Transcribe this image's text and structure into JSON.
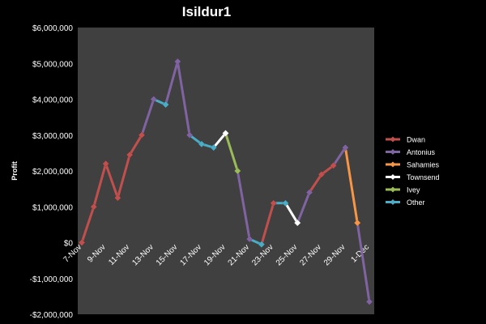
{
  "chart_data": {
    "type": "line",
    "title": "Isildur1",
    "xlabel": "",
    "ylabel": "Profit",
    "ylim": [
      -2000000,
      6000000
    ],
    "y_ticks": [
      -2000000,
      -1000000,
      0,
      1000000,
      2000000,
      3000000,
      4000000,
      5000000,
      6000000
    ],
    "y_tick_labels": [
      "-$2,000,000",
      "-$1,000,000",
      "$0",
      "$1,000,000",
      "$2,000,000",
      "$3,000,000",
      "$4,000,000",
      "$5,000,000",
      "$6,000,000"
    ],
    "x_start": "7-Nov",
    "x_end": "1-Dec",
    "x_tick_labels": [
      "7-Nov",
      "9-Nov",
      "11-Nov",
      "13-Nov",
      "15-Nov",
      "17-Nov",
      "19-Nov",
      "21-Nov",
      "23-Nov",
      "25-Nov",
      "27-Nov",
      "29-Nov",
      "1-Dec"
    ],
    "grid": false,
    "legend_position": "right",
    "plot_background": "#404040",
    "points": [
      {
        "x": "7-Nov",
        "y": 0
      },
      {
        "x": "8-Nov",
        "y": 1000000
      },
      {
        "x": "9-Nov",
        "y": 2200000
      },
      {
        "x": "10-Nov",
        "y": 1250000
      },
      {
        "x": "11-Nov",
        "y": 2450000
      },
      {
        "x": "12-Nov",
        "y": 3000000
      },
      {
        "x": "13-Nov",
        "y": 4000000
      },
      {
        "x": "14-Nov",
        "y": 3850000
      },
      {
        "x": "15-Nov",
        "y": 5050000
      },
      {
        "x": "16-Nov",
        "y": 3000000
      },
      {
        "x": "17-Nov",
        "y": 2750000
      },
      {
        "x": "18-Nov",
        "y": 2650000
      },
      {
        "x": "19-Nov",
        "y": 3050000
      },
      {
        "x": "20-Nov",
        "y": 2000000
      },
      {
        "x": "21-Nov",
        "y": 100000
      },
      {
        "x": "22-Nov",
        "y": -50000
      },
      {
        "x": "23-Nov",
        "y": 1100000
      },
      {
        "x": "24-Nov",
        "y": 1100000
      },
      {
        "x": "25-Nov",
        "y": 550000
      },
      {
        "x": "26-Nov",
        "y": 1400000
      },
      {
        "x": "27-Nov",
        "y": 1900000
      },
      {
        "x": "28-Nov",
        "y": 2150000
      },
      {
        "x": "29-Nov",
        "y": 2650000
      },
      {
        "x": "30-Nov",
        "y": 550000
      },
      {
        "x": "1-Dec",
        "y": -1650000
      }
    ],
    "series": [
      {
        "name": "Dwan",
        "color": "#c0504d",
        "segments": [
          [
            "7-Nov",
            "12-Nov"
          ],
          [
            "22-Nov",
            "23-Nov"
          ],
          [
            "26-Nov",
            "28-Nov"
          ]
        ]
      },
      {
        "name": "Antonius",
        "color": "#8064a2",
        "segments": [
          [
            "12-Nov",
            "13-Nov"
          ],
          [
            "14-Nov",
            "16-Nov"
          ],
          [
            "20-Nov",
            "21-Nov"
          ],
          [
            "25-Nov",
            "26-Nov"
          ],
          [
            "28-Nov",
            "29-Nov"
          ],
          [
            "30-Nov",
            "1-Dec"
          ]
        ]
      },
      {
        "name": "Sahamies",
        "color": "#f79646",
        "segments": [
          [
            "29-Nov",
            "30-Nov"
          ]
        ]
      },
      {
        "name": "Townsend",
        "color": "#ffffff",
        "segments": [
          [
            "18-Nov",
            "19-Nov"
          ],
          [
            "24-Nov",
            "25-Nov"
          ]
        ]
      },
      {
        "name": "Ivey",
        "color": "#9bbb59",
        "segments": [
          [
            "19-Nov",
            "20-Nov"
          ]
        ]
      },
      {
        "name": "Other",
        "color": "#4bacc6",
        "segments": [
          [
            "13-Nov",
            "14-Nov"
          ],
          [
            "16-Nov",
            "18-Nov"
          ],
          [
            "21-Nov",
            "22-Nov"
          ],
          [
            "23-Nov",
            "24-Nov"
          ]
        ]
      }
    ]
  }
}
